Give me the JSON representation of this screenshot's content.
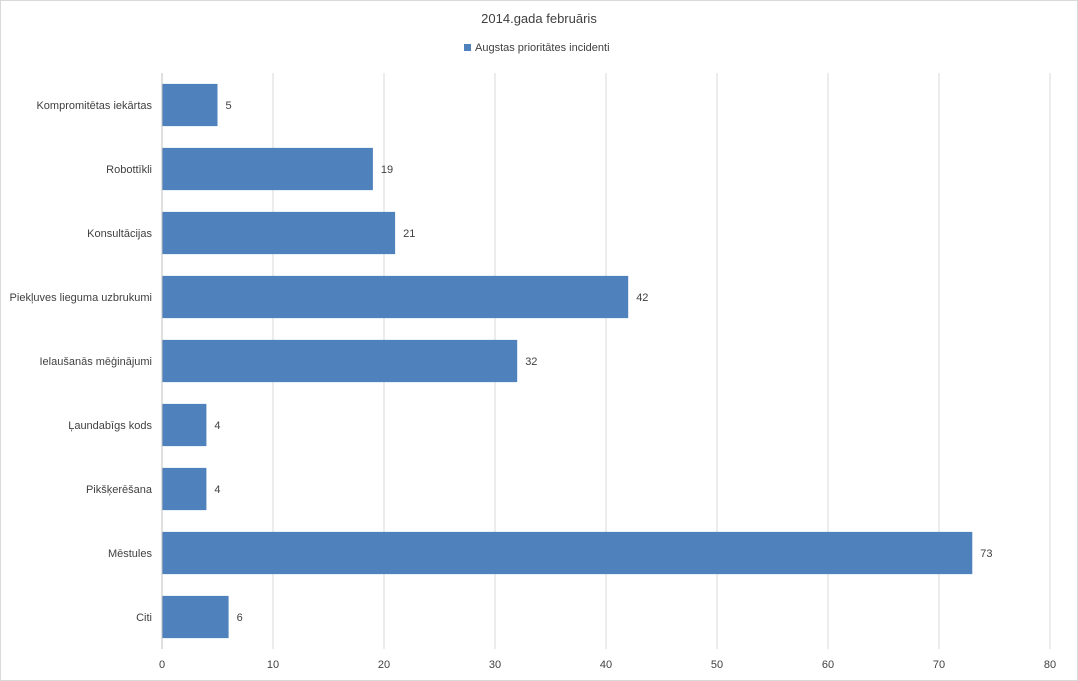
{
  "chart_data": {
    "type": "bar",
    "orientation": "horizontal",
    "title": "2014.gada februāris",
    "xlim": [
      0,
      80
    ],
    "x_ticks": [
      0,
      10,
      20,
      30,
      40,
      50,
      60,
      70,
      80
    ],
    "grid": true,
    "legend_position": "top",
    "categories": [
      "Kompromitētas iekārtas",
      "Robottīkli",
      "Konsultācijas",
      "Piekļuves lieguma uzbrukumi",
      "Ielaušanās mēģinājumi",
      "Ļaundabīgs kods",
      "Pikšķerēšana",
      "Mēstules",
      "Citi"
    ],
    "series": [
      {
        "name": "Augstas prioritātes incidenti",
        "color": "#4f81bd",
        "values": [
          5,
          19,
          21,
          42,
          32,
          4,
          4,
          73,
          6
        ]
      }
    ]
  }
}
